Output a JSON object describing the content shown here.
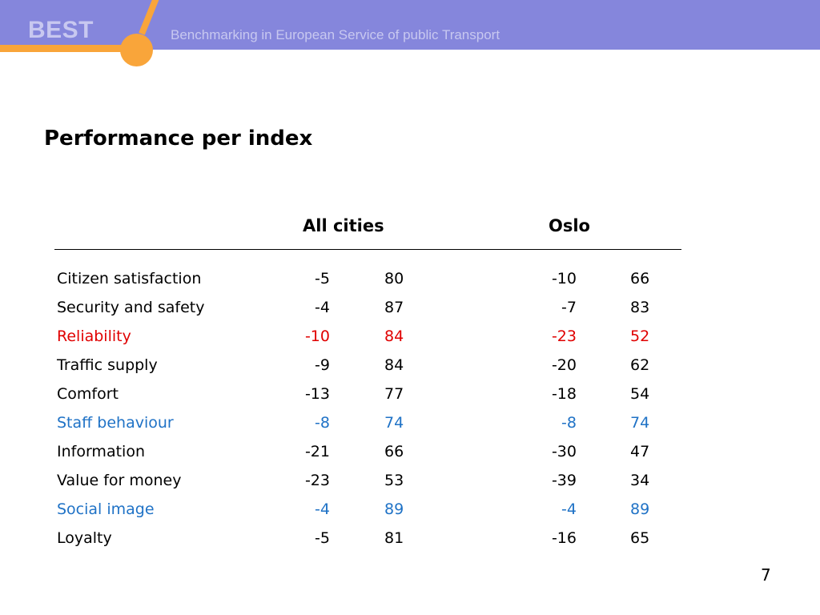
{
  "header": {
    "brand": "BEST",
    "tagline": "Benchmarking in European Service of public Transport",
    "colors": {
      "band": "#8586dc",
      "accent": "#f9a53a",
      "text": "#c8c8f0"
    }
  },
  "title": "Performance per index",
  "columns": {
    "all_cities": "All cities",
    "oslo": "Oslo"
  },
  "rows": [
    {
      "label": "Citizen satisfaction",
      "all_change": "-5",
      "all_value": "80",
      "oslo_change": "-10",
      "oslo_value": "66"
    },
    {
      "label": "Security and safety",
      "all_change": "-4",
      "all_value": "87",
      "oslo_change": "-7",
      "oslo_value": "83"
    },
    {
      "label": "Reliability",
      "all_change": "-10",
      "all_value": "84",
      "oslo_change": "-23",
      "oslo_value": "52"
    },
    {
      "label": "Traffic supply",
      "all_change": "-9",
      "all_value": "84",
      "oslo_change": "-20",
      "oslo_value": "62"
    },
    {
      "label": "Comfort",
      "all_change": "-13",
      "all_value": "77",
      "oslo_change": "-18",
      "oslo_value": "54"
    },
    {
      "label": "Staff behaviour",
      "all_change": "-8",
      "all_value": "74",
      "oslo_change": "-8",
      "oslo_value": "74"
    },
    {
      "label": "Information",
      "all_change": "-21",
      "all_value": "66",
      "oslo_change": "-30",
      "oslo_value": "47"
    },
    {
      "label": "Value for money",
      "all_change": "-23",
      "all_value": "53",
      "oslo_change": "-39",
      "oslo_value": "34"
    },
    {
      "label": "Social image",
      "all_change": "-4",
      "all_value": "89",
      "oslo_change": "-4",
      "oslo_value": "89"
    },
    {
      "label": "Loyalty",
      "all_change": "-5",
      "all_value": "81",
      "oslo_change": "-16",
      "oslo_value": "65"
    }
  ],
  "highlight_colors": {
    "red": "#e00000",
    "blue": "#1f72c6"
  },
  "page_number": "7"
}
